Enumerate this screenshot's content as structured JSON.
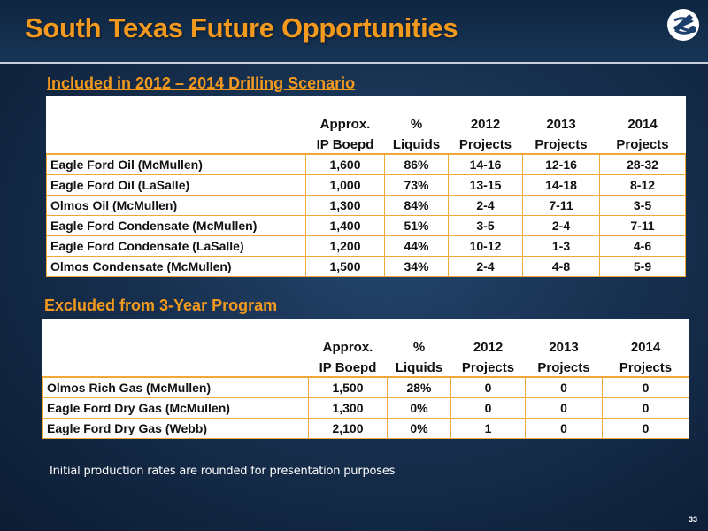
{
  "header": {
    "title": "South Texas Future Opportunities"
  },
  "colors": {
    "accent": "#f39a1e",
    "background": "#17304f",
    "table_border": "#f0a836"
  },
  "logo": {
    "icon": "company-logo-icon"
  },
  "included": {
    "title": "Included in 2012 – 2014 Drilling Scenario",
    "headers": {
      "row1": [
        "",
        "Approx.",
        "%",
        "2012",
        "2013",
        "2014"
      ],
      "row2": [
        "",
        "IP Boepd",
        "Liquids",
        "Projects",
        "Projects",
        "Projects"
      ]
    },
    "rows": [
      {
        "name": "Eagle Ford Oil (McMullen)",
        "ip": "1,600",
        "liquids": "86%",
        "p2012": "14-16",
        "p2013": "12-16",
        "p2014": "28-32"
      },
      {
        "name": "Eagle Ford Oil (LaSalle)",
        "ip": "1,000",
        "liquids": "73%",
        "p2012": "13-15",
        "p2013": "14-18",
        "p2014": "8-12"
      },
      {
        "name": "Olmos Oil (McMullen)",
        "ip": "1,300",
        "liquids": "84%",
        "p2012": "2-4",
        "p2013": "7-11",
        "p2014": "3-5"
      },
      {
        "name": "Eagle Ford Condensate (McMullen)",
        "ip": "1,400",
        "liquids": "51%",
        "p2012": "3-5",
        "p2013": "2-4",
        "p2014": "7-11"
      },
      {
        "name": "Eagle Ford Condensate (LaSalle)",
        "ip": "1,200",
        "liquids": "44%",
        "p2012": "10-12",
        "p2013": "1-3",
        "p2014": "4-6"
      },
      {
        "name": "Olmos Condensate (McMullen)",
        "ip": "1,500",
        "liquids": "34%",
        "p2012": "2-4",
        "p2013": "4-8",
        "p2014": "5-9"
      }
    ]
  },
  "excluded": {
    "title": "Excluded from 3-Year Program",
    "headers": {
      "row1": [
        "",
        "Approx.",
        "%",
        "2012",
        "2013",
        "2014"
      ],
      "row2": [
        "",
        "IP Boepd",
        "Liquids",
        "Projects",
        "Projects",
        "Projects"
      ]
    },
    "rows": [
      {
        "name": "Olmos Rich Gas (McMullen)",
        "ip": "1,500",
        "liquids": "28%",
        "p2012": "0",
        "p2013": "0",
        "p2014": "0"
      },
      {
        "name": "Eagle Ford Dry Gas (McMullen)",
        "ip": "1,300",
        "liquids": "0%",
        "p2012": "0",
        "p2013": "0",
        "p2014": "0"
      },
      {
        "name": "Eagle Ford Dry Gas (Webb)",
        "ip": "2,100",
        "liquids": "0%",
        "p2012": "1",
        "p2013": "0",
        "p2014": "0"
      }
    ]
  },
  "footnote": "Initial production rates are rounded for presentation purposes",
  "page_number": "33"
}
